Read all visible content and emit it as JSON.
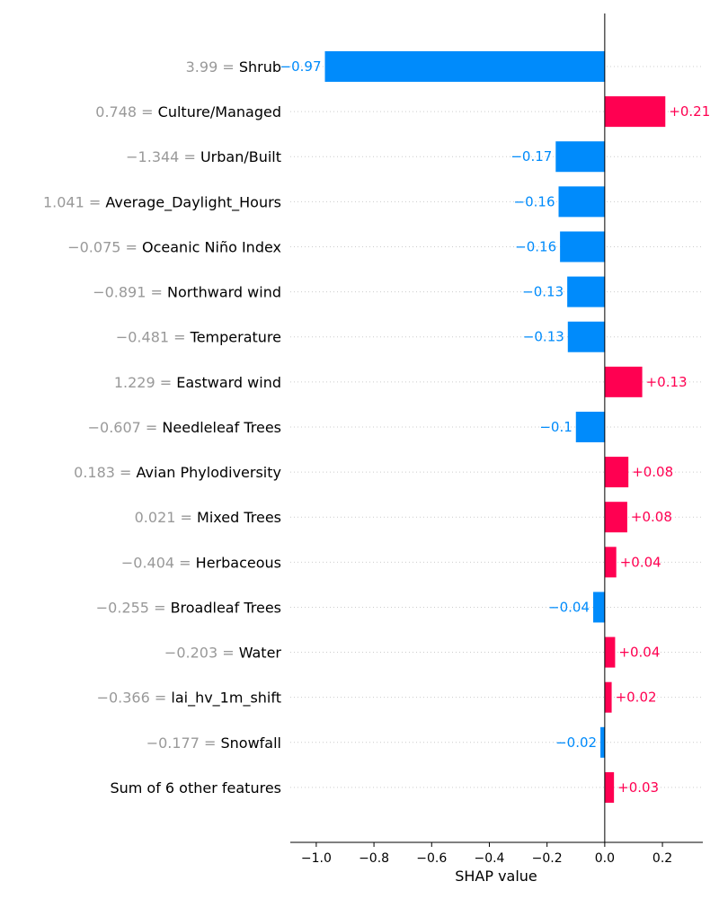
{
  "chart_data": {
    "type": "bar",
    "orientation": "horizontal",
    "xlabel": "SHAP value",
    "xlim": [
      -1.09,
      0.34
    ],
    "xticks": [
      -1.0,
      -0.8,
      -0.6,
      -0.4,
      -0.2,
      0.0,
      0.2
    ],
    "xtick_labels": [
      "−1.0",
      "−0.8",
      "−0.6",
      "−0.4",
      "−0.2",
      "0.0",
      "0.2"
    ],
    "grid": "dotted horizontal row lines",
    "colors": {
      "positive": "#ff0051",
      "negative": "#008bfb",
      "feature_value": "#999999",
      "feature_name": "#000000"
    },
    "features": [
      {
        "name": "Shrub",
        "value": "3.99",
        "shap": -0.97,
        "label": "−0.97"
      },
      {
        "name": "Culture/Managed",
        "value": "0.748",
        "shap": 0.21,
        "label": "+0.21"
      },
      {
        "name": "Urban/Built",
        "value": "−1.344",
        "shap": -0.17,
        "label": "−0.17"
      },
      {
        "name": "Average_Daylight_Hours",
        "value": "1.041",
        "shap": -0.16,
        "label": "−0.16"
      },
      {
        "name": "Oceanic Niño Index",
        "value": "−0.075",
        "shap": -0.155,
        "label": "−0.16"
      },
      {
        "name": "Northward wind",
        "value": "−0.891",
        "shap": -0.13,
        "label": "−0.13"
      },
      {
        "name": "Temperature",
        "value": "−0.481",
        "shap": -0.128,
        "label": "−0.13"
      },
      {
        "name": "Eastward wind",
        "value": "1.229",
        "shap": 0.13,
        "label": "+0.13"
      },
      {
        "name": "Needleleaf Trees",
        "value": "−0.607",
        "shap": -0.1,
        "label": "−0.1"
      },
      {
        "name": "Avian Phylodiversity",
        "value": "0.183",
        "shap": 0.082,
        "label": "+0.08"
      },
      {
        "name": "Mixed Trees",
        "value": "0.021",
        "shap": 0.078,
        "label": "+0.08"
      },
      {
        "name": "Herbaceous",
        "value": "−0.404",
        "shap": 0.04,
        "label": "+0.04"
      },
      {
        "name": "Broadleaf Trees",
        "value": "−0.255",
        "shap": -0.04,
        "label": "−0.04"
      },
      {
        "name": "Water",
        "value": "−0.203",
        "shap": 0.036,
        "label": "+0.04"
      },
      {
        "name": "lai_hv_1m_shift",
        "value": "−0.366",
        "shap": 0.024,
        "label": "+0.02"
      },
      {
        "name": "Snowfall",
        "value": "−0.177",
        "shap": -0.015,
        "label": "−0.02"
      },
      {
        "name": "Sum of 6 other features",
        "value": "",
        "shap": 0.032,
        "label": "+0.03"
      }
    ]
  }
}
